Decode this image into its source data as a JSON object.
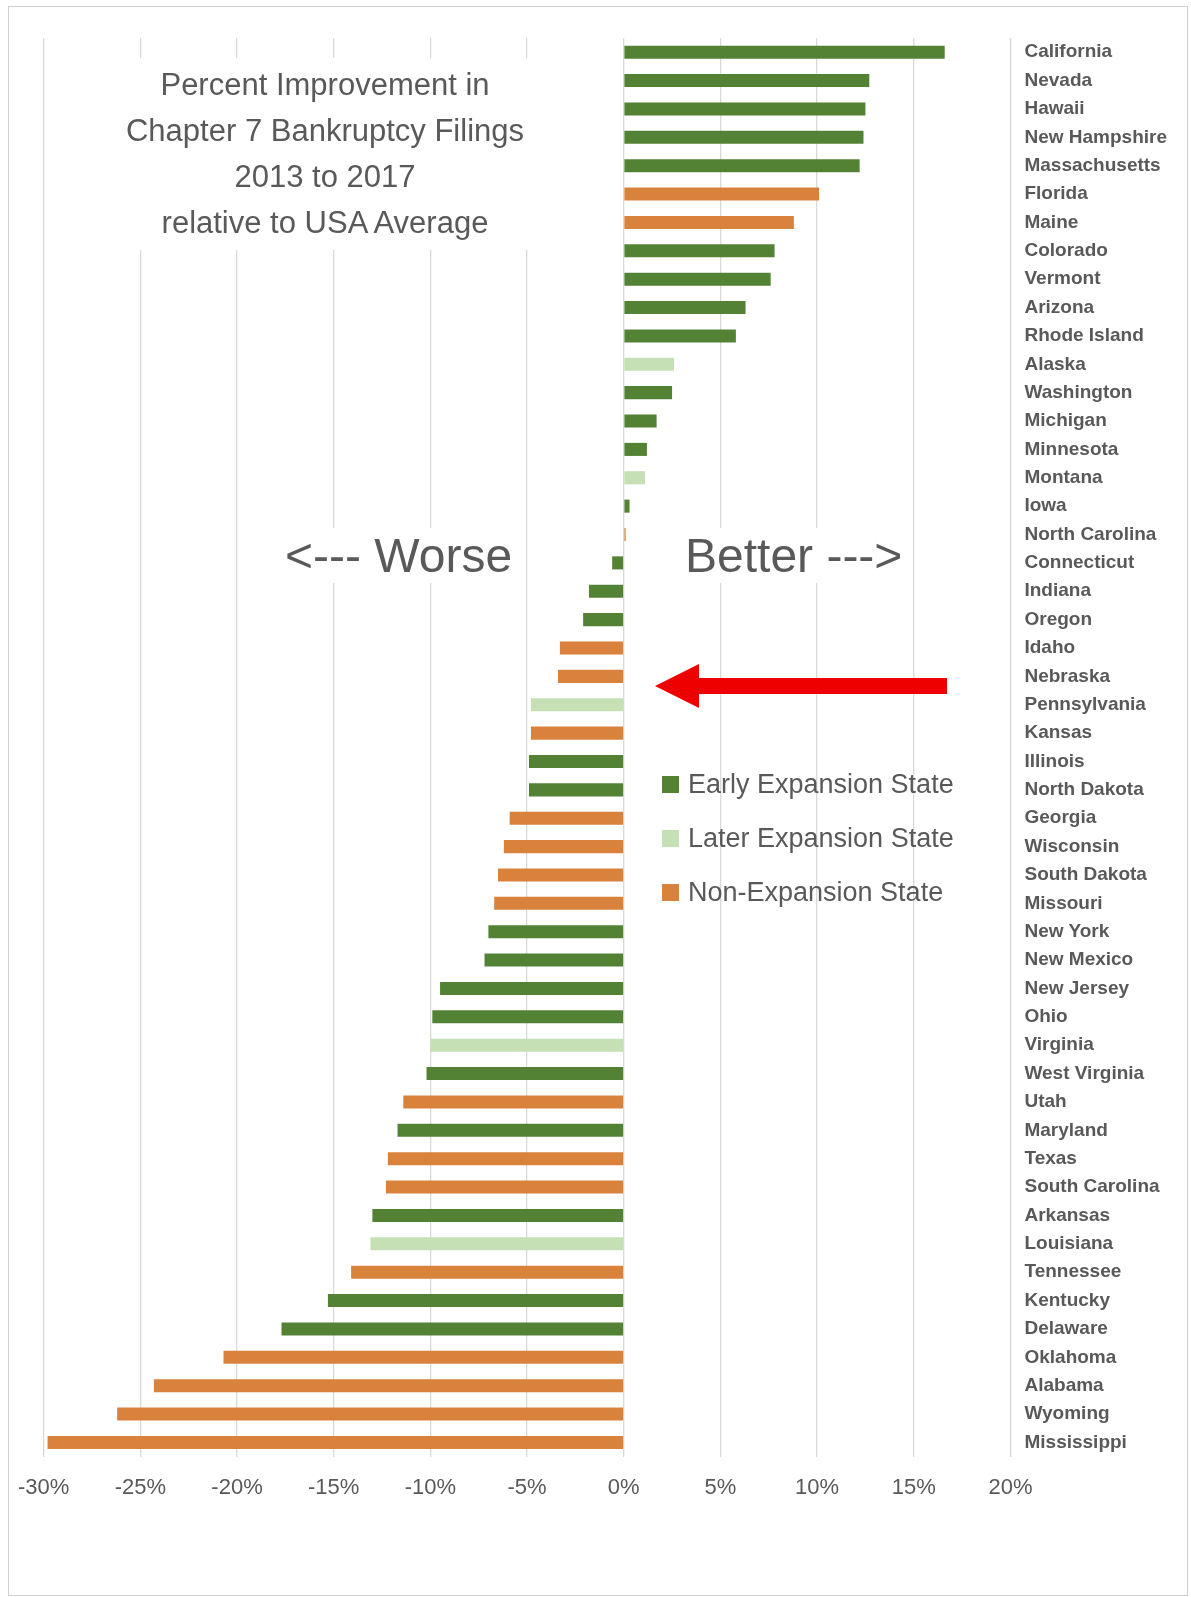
{
  "chart_data": {
    "type": "bar",
    "orientation": "horizontal",
    "stacked": true,
    "title": "Percent Improvement in\nChapter 7 Bankruptcy Filings\n2013 to 2017\nrelative to USA Average",
    "annotations": [
      "<--- Worse",
      "Better --->"
    ],
    "categories": [
      "California",
      "Nevada",
      "Hawaii",
      "New Hampshire",
      "Massachusetts",
      "Florida",
      "Maine",
      "Colorado",
      "Vermont",
      "Arizona",
      "Rhode Island",
      "Alaska",
      "Washington",
      "Michigan",
      "Minnesota",
      "Montana",
      "Iowa",
      "North Carolina",
      "Connecticut",
      "Indiana",
      "Oregon",
      "Idaho",
      "Nebraska",
      "Pennsylvania",
      "Kansas",
      "Illinois",
      "North Dakota",
      "Georgia",
      "Wisconsin",
      "South Dakota",
      "Missouri",
      "New York",
      "New Mexico",
      "New Jersey",
      "Ohio",
      "Virginia",
      "West Virginia",
      "Utah",
      "Maryland",
      "Texas",
      "South Carolina",
      "Arkansas",
      "Louisiana",
      "Tennessee",
      "Kentucky",
      "Delaware",
      "Oklahoma",
      "Alabama",
      "Wyoming",
      "Mississippi"
    ],
    "series": [
      {
        "name": "Early Expansion State",
        "color": "#548235",
        "values": [
          16.6,
          12.7,
          12.5,
          12.4,
          12.2,
          null,
          null,
          7.8,
          7.6,
          6.3,
          5.8,
          null,
          2.5,
          1.7,
          1.2,
          null,
          0.3,
          null,
          -0.6,
          -1.8,
          -2.1,
          null,
          null,
          null,
          null,
          -4.9,
          -4.9,
          null,
          null,
          null,
          null,
          -7.0,
          -7.2,
          -9.5,
          -9.9,
          null,
          -10.2,
          null,
          -11.7,
          null,
          null,
          -13.0,
          null,
          null,
          -15.3,
          -17.7,
          null,
          null,
          null,
          null
        ]
      },
      {
        "name": "Later Expansion State",
        "color": "#c5e0b4",
        "values": [
          null,
          null,
          null,
          null,
          null,
          null,
          null,
          null,
          null,
          null,
          null,
          2.6,
          null,
          null,
          null,
          1.1,
          null,
          null,
          null,
          null,
          null,
          null,
          null,
          -4.8,
          null,
          null,
          null,
          null,
          null,
          null,
          null,
          null,
          null,
          null,
          null,
          -10.0,
          null,
          null,
          null,
          null,
          null,
          null,
          -13.1,
          null,
          null,
          null,
          null,
          null,
          null,
          null
        ]
      },
      {
        "name": "Non-Expansion State",
        "color": "#d9823b",
        "values": [
          null,
          null,
          null,
          null,
          null,
          10.1,
          8.8,
          null,
          null,
          null,
          null,
          null,
          null,
          null,
          null,
          null,
          null,
          0.1,
          null,
          null,
          null,
          -3.3,
          -3.4,
          null,
          -4.8,
          null,
          null,
          -5.9,
          -6.2,
          -6.5,
          -6.7,
          null,
          null,
          null,
          null,
          null,
          null,
          -11.4,
          null,
          -12.2,
          -12.3,
          null,
          null,
          -14.1,
          null,
          null,
          -20.7,
          -24.3,
          -26.2,
          -29.8
        ]
      }
    ],
    "xlim": [
      -30,
      20
    ],
    "xticks": [
      {
        "value": -30,
        "label": "-30%"
      },
      {
        "value": -25,
        "label": "-25%"
      },
      {
        "value": -20,
        "label": "-20%"
      },
      {
        "value": -15,
        "label": "-15%"
      },
      {
        "value": -10,
        "label": "-10%"
      },
      {
        "value": -5,
        "label": "-5%"
      },
      {
        "value": 0,
        "label": "0%"
      },
      {
        "value": 5,
        "label": "5%"
      },
      {
        "value": 10,
        "label": "10%"
      },
      {
        "value": 15,
        "label": "15%"
      },
      {
        "value": 20,
        "label": "20%"
      }
    ],
    "grid": "x",
    "legend": "right"
  }
}
